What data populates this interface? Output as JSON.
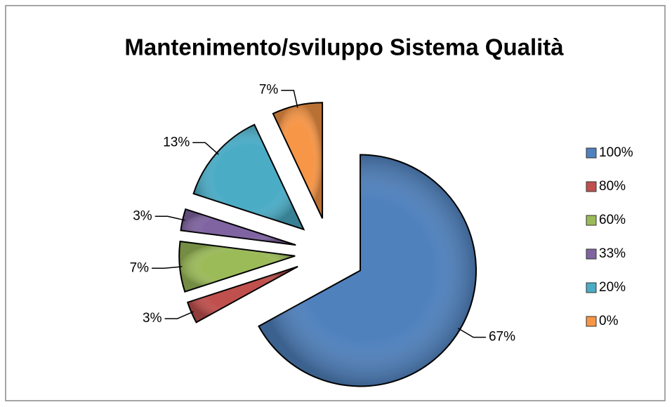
{
  "chart_data": {
    "type": "pie",
    "title": "Mantenimento/sviluppo Sistema Qualità",
    "categories": [
      "100%",
      "80%",
      "60%",
      "33%",
      "20%",
      "0%"
    ],
    "values": [
      67,
      3,
      7,
      3,
      13,
      7
    ],
    "value_labels": [
      "67%",
      "3%",
      "7%",
      "3%",
      "13%",
      "7%"
    ],
    "colors": [
      "#4f81bd",
      "#c0504d",
      "#9bbb59",
      "#8064a2",
      "#4bacc6",
      "#f79646"
    ],
    "legend": "right"
  }
}
